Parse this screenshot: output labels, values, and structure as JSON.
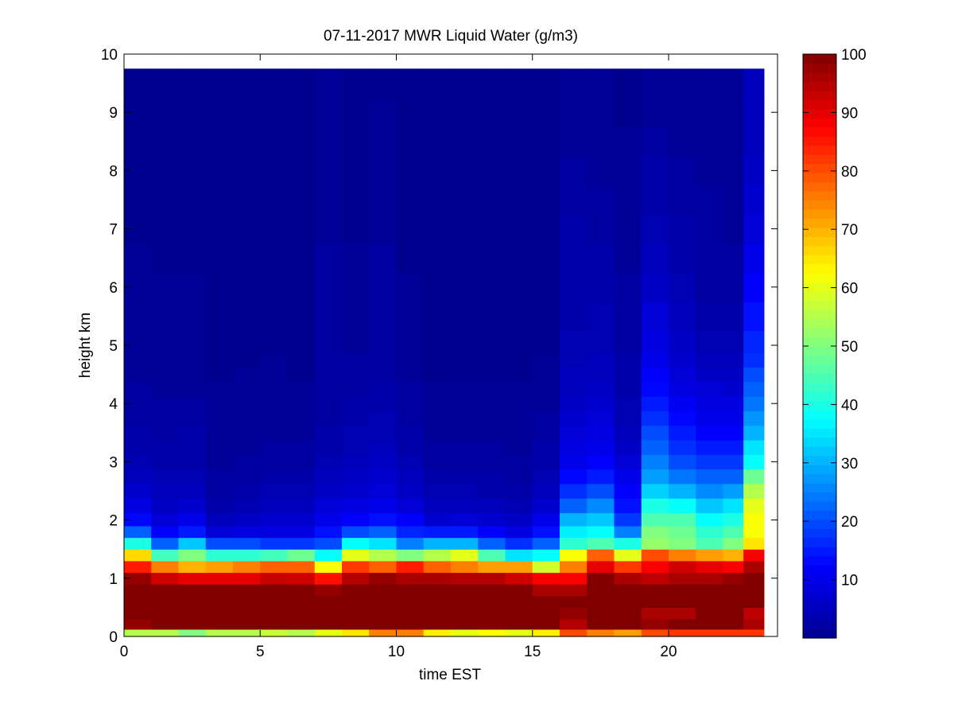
{
  "chart_data": {
    "type": "heatmap",
    "title": "07-11-2017 MWR Liquid Water (g/m3)",
    "xlabel": "time EST",
    "ylabel": "height km",
    "xlim": [
      0,
      24
    ],
    "ylim": [
      0,
      10
    ],
    "x_ticks": [
      0,
      5,
      10,
      15,
      20
    ],
    "y_ticks": [
      0,
      1,
      2,
      3,
      4,
      5,
      6,
      7,
      8,
      9,
      10
    ],
    "colorbar": {
      "colormap": "jet",
      "range": [
        0,
        100
      ],
      "ticks": [
        10,
        20,
        30,
        40,
        50,
        60,
        70,
        80,
        90,
        100
      ]
    },
    "x": [
      0.5,
      1.5,
      2.5,
      3.5,
      4.5,
      5.5,
      6.5,
      7.5,
      8.5,
      9.5,
      10.5,
      11.5,
      12.5,
      13.5,
      14.5,
      15.5,
      16.5,
      17.5,
      18.5,
      19.5,
      20.5,
      21.5,
      22.5,
      23.0
    ],
    "y": [
      0.05,
      0.2,
      0.4,
      0.6,
      0.8,
      1.0,
      1.2,
      1.4,
      1.6,
      1.8,
      2.0,
      2.25,
      2.5,
      2.75,
      3.0,
      3.25,
      3.5,
      3.75,
      4.0,
      4.25,
      4.5,
      4.75,
      5.0,
      5.5,
      6.0,
      6.5,
      7.0,
      7.5,
      8.0,
      8.5,
      9.0,
      9.5
    ],
    "z": [
      [
        55,
        98,
        100,
        100,
        100,
        98,
        85,
        66,
        40,
        22,
        13,
        9,
        7,
        5,
        4,
        3,
        3,
        2,
        2,
        2,
        1,
        1,
        1,
        1,
        1,
        1,
        0,
        0,
        0,
        0,
        0,
        0
      ],
      [
        55,
        100,
        100,
        100,
        100,
        92,
        75,
        44,
        22,
        12,
        8,
        6,
        5,
        4,
        3,
        3,
        2,
        2,
        2,
        1,
        1,
        1,
        1,
        1,
        1,
        0,
        0,
        0,
        0,
        0,
        0,
        0
      ],
      [
        50,
        100,
        100,
        100,
        100,
        90,
        70,
        50,
        32,
        15,
        10,
        7,
        5,
        4,
        3,
        3,
        3,
        2,
        2,
        1,
        1,
        1,
        1,
        1,
        1,
        0,
        0,
        0,
        0,
        0,
        0,
        0
      ],
      [
        55,
        100,
        100,
        100,
        100,
        90,
        72,
        42,
        20,
        8,
        5,
        3,
        2,
        2,
        1,
        1,
        1,
        1,
        1,
        1,
        0,
        0,
        0,
        0,
        0,
        0,
        0,
        0,
        0,
        0,
        0,
        0
      ],
      [
        55,
        100,
        100,
        100,
        100,
        90,
        75,
        42,
        20,
        9,
        6,
        4,
        3,
        2,
        2,
        1,
        1,
        1,
        1,
        1,
        1,
        0,
        0,
        0,
        0,
        0,
        0,
        0,
        0,
        0,
        0,
        0
      ],
      [
        57,
        100,
        100,
        100,
        100,
        93,
        78,
        44,
        18,
        9,
        7,
        5,
        4,
        3,
        2,
        2,
        1,
        1,
        1,
        1,
        1,
        1,
        0,
        0,
        0,
        0,
        0,
        0,
        0,
        0,
        0,
        0
      ],
      [
        55,
        100,
        100,
        100,
        100,
        92,
        78,
        48,
        18,
        9,
        7,
        5,
        4,
        3,
        2,
        2,
        1,
        1,
        1,
        1,
        0,
        0,
        0,
        0,
        0,
        0,
        0,
        0,
        0,
        0,
        0,
        0
      ],
      [
        60,
        100,
        100,
        100,
        98,
        86,
        62,
        38,
        20,
        14,
        10,
        8,
        6,
        5,
        4,
        3,
        3,
        2,
        2,
        2,
        2,
        2,
        2,
        2,
        2,
        2,
        1,
        1,
        1,
        1,
        1,
        1
      ],
      [
        65,
        100,
        100,
        100,
        100,
        95,
        82,
        60,
        38,
        20,
        12,
        9,
        7,
        6,
        5,
        4,
        4,
        3,
        3,
        2,
        2,
        2,
        1,
        1,
        1,
        1,
        0,
        0,
        0,
        0,
        0,
        0
      ],
      [
        75,
        100,
        100,
        100,
        100,
        98,
        78,
        55,
        35,
        22,
        14,
        10,
        8,
        7,
        6,
        5,
        4,
        4,
        3,
        3,
        2,
        2,
        2,
        2,
        2,
        2,
        1,
        1,
        1,
        1,
        1,
        0
      ],
      [
        75,
        100,
        100,
        100,
        100,
        96,
        85,
        50,
        25,
        16,
        12,
        8,
        6,
        5,
        4,
        3,
        3,
        2,
        2,
        2,
        1,
        1,
        1,
        1,
        1,
        0,
        0,
        0,
        0,
        0,
        0,
        0
      ],
      [
        64,
        100,
        100,
        100,
        100,
        96,
        78,
        55,
        30,
        15,
        7,
        5,
        4,
        3,
        2,
        2,
        1,
        1,
        1,
        1,
        0,
        0,
        0,
        0,
        0,
        0,
        0,
        0,
        0,
        0,
        0,
        0
      ],
      [
        60,
        100,
        100,
        100,
        100,
        95,
        75,
        60,
        30,
        15,
        8,
        5,
        4,
        3,
        2,
        2,
        1,
        1,
        1,
        1,
        0,
        0,
        0,
        0,
        0,
        0,
        0,
        0,
        0,
        0,
        0,
        0
      ],
      [
        62,
        100,
        100,
        100,
        100,
        95,
        72,
        45,
        22,
        12,
        7,
        5,
        3,
        3,
        2,
        2,
        1,
        1,
        1,
        1,
        0,
        0,
        0,
        0,
        0,
        0,
        0,
        0,
        0,
        0,
        0,
        0
      ],
      [
        60,
        100,
        100,
        100,
        100,
        92,
        72,
        35,
        17,
        9,
        6,
        4,
        3,
        2,
        2,
        1,
        1,
        1,
        1,
        1,
        0,
        0,
        0,
        0,
        0,
        0,
        0,
        0,
        0,
        0,
        0,
        0
      ],
      [
        64,
        100,
        100,
        100,
        96,
        88,
        58,
        38,
        22,
        14,
        10,
        7,
        5,
        4,
        3,
        3,
        2,
        2,
        1,
        1,
        1,
        1,
        0,
        0,
        0,
        0,
        0,
        0,
        0,
        0,
        0,
        0
      ],
      [
        80,
        95,
        98,
        100,
        96,
        88,
        75,
        62,
        42,
        36,
        30,
        22,
        17,
        13,
        10,
        9,
        8,
        7,
        6,
        5,
        5,
        4,
        4,
        3,
        3,
        3,
        3,
        2,
        2,
        1,
        1,
        1
      ],
      [
        75,
        100,
        100,
        100,
        100,
        100,
        90,
        78,
        45,
        38,
        32,
        26,
        20,
        15,
        12,
        10,
        9,
        8,
        7,
        6,
        5,
        5,
        4,
        4,
        3,
        3,
        2,
        2,
        1,
        1,
        1,
        1
      ],
      [
        72,
        100,
        100,
        100,
        100,
        96,
        82,
        60,
        40,
        25,
        18,
        14,
        12,
        10,
        8,
        6,
        5,
        4,
        4,
        3,
        3,
        3,
        2,
        2,
        2,
        1,
        1,
        1,
        1,
        1,
        0,
        0
      ],
      [
        80,
        98,
        96,
        100,
        100,
        94,
        88,
        80,
        52,
        50,
        45,
        40,
        33,
        28,
        25,
        22,
        20,
        17,
        15,
        13,
        12,
        10,
        9,
        8,
        6,
        5,
        4,
        3,
        3,
        2,
        1,
        1
      ],
      [
        82,
        100,
        96,
        100,
        100,
        96,
        92,
        75,
        50,
        48,
        45,
        38,
        30,
        24,
        20,
        17,
        15,
        13,
        11,
        9,
        8,
        7,
        6,
        5,
        4,
        3,
        3,
        2,
        2,
        1,
        1,
        1
      ],
      [
        82,
        100,
        100,
        100,
        100,
        96,
        90,
        72,
        45,
        42,
        38,
        32,
        26,
        22,
        18,
        15,
        12,
        10,
        9,
        8,
        6,
        5,
        4,
        3,
        2,
        2,
        2,
        2,
        1,
        1,
        1,
        1
      ],
      [
        82,
        100,
        100,
        100,
        100,
        98,
        88,
        70,
        50,
        45,
        40,
        35,
        28,
        22,
        18,
        15,
        12,
        10,
        9,
        7,
        6,
        5,
        4,
        3,
        2,
        2,
        1,
        1,
        1,
        1,
        1,
        1
      ],
      [
        82,
        96,
        94,
        100,
        100,
        100,
        96,
        88,
        65,
        62,
        62,
        60,
        55,
        48,
        38,
        35,
        30,
        27,
        24,
        22,
        20,
        17,
        16,
        14,
        12,
        10,
        8,
        7,
        6,
        5,
        5,
        5
      ]
    ]
  },
  "colors": {
    "jet": [
      "#00008f",
      "#0000ff",
      "#00ffff",
      "#ffff00",
      "#ff0000",
      "#800000"
    ]
  }
}
